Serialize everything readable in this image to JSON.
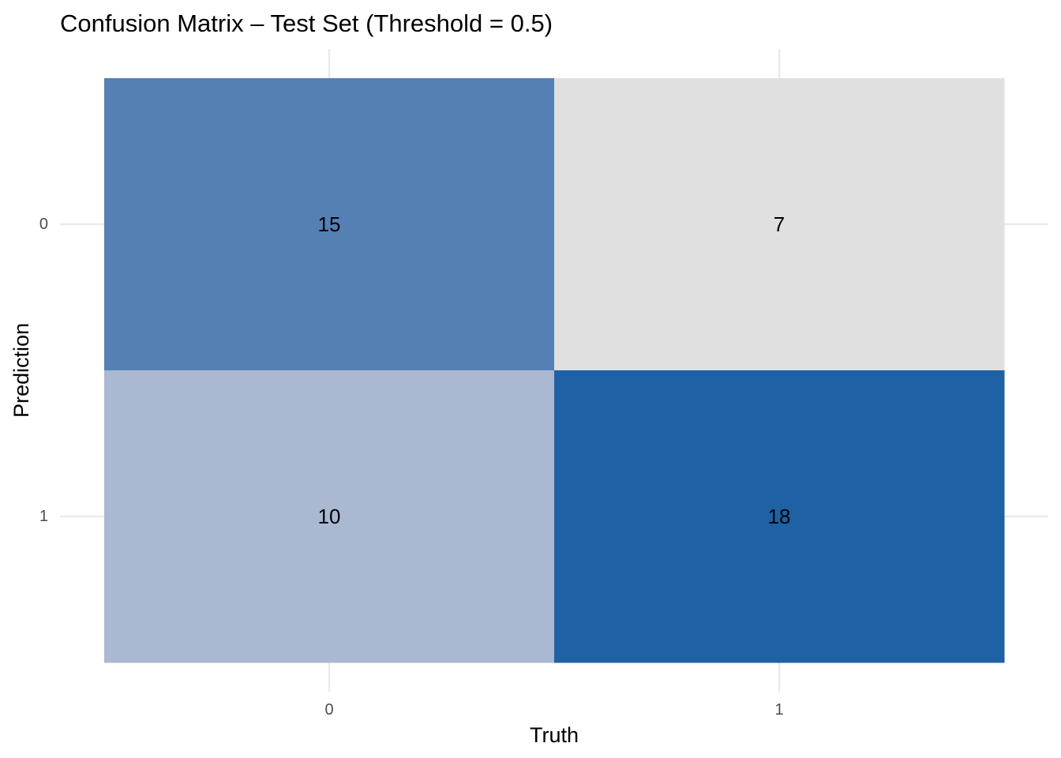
{
  "chart_data": {
    "type": "heatmap",
    "title": "Confusion Matrix – Test Set (Threshold = 0.5)",
    "xlabel": "Truth",
    "ylabel": "Prediction",
    "x_categories": [
      "0",
      "1"
    ],
    "y_categories": [
      "0",
      "1"
    ],
    "cells": [
      {
        "prediction": "0",
        "truth": "0",
        "value": 15,
        "color": "#5580b4"
      },
      {
        "prediction": "0",
        "truth": "1",
        "value": 7,
        "color": "#e0e0e0"
      },
      {
        "prediction": "1",
        "truth": "0",
        "value": 10,
        "color": "#aab9d1"
      },
      {
        "prediction": "1",
        "truth": "1",
        "value": 18,
        "color": "#1e62a5"
      }
    ],
    "color_scale": {
      "low": "#e0e0e0",
      "high": "#1e62a5"
    },
    "legend": "none",
    "grid": true
  }
}
